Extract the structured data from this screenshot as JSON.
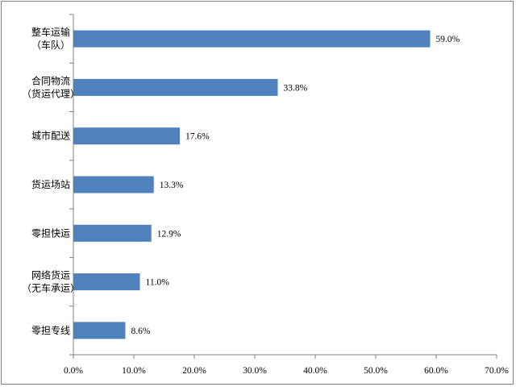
{
  "chart_data": {
    "type": "bar",
    "orientation": "horizontal",
    "title": "",
    "xlabel": "",
    "ylabel": "",
    "categories": [
      [
        "整车运输",
        "（车队）"
      ],
      [
        "合同物流",
        "（货运代理）"
      ],
      [
        "城市配送"
      ],
      [
        "货运场站"
      ],
      [
        "零担快运"
      ],
      [
        "网络货运",
        "（无车承运）"
      ],
      [
        "零担专线"
      ]
    ],
    "values": [
      59.0,
      33.8,
      17.6,
      13.3,
      12.9,
      11.0,
      8.6
    ],
    "data_labels": [
      "59.0%",
      "33.8%",
      "17.6%",
      "13.3%",
      "12.9%",
      "11.0%",
      "8.6%"
    ],
    "xlim": [
      0,
      70
    ],
    "x_ticks": [
      0,
      10,
      20,
      30,
      40,
      50,
      60,
      70
    ],
    "x_tick_labels": [
      "0.0%",
      "10.0%",
      "20.0%",
      "30.0%",
      "40.0%",
      "50.0%",
      "60.0%",
      "70.0%"
    ],
    "grid": false,
    "legend": "none",
    "bar_color": "#4f81bd"
  }
}
